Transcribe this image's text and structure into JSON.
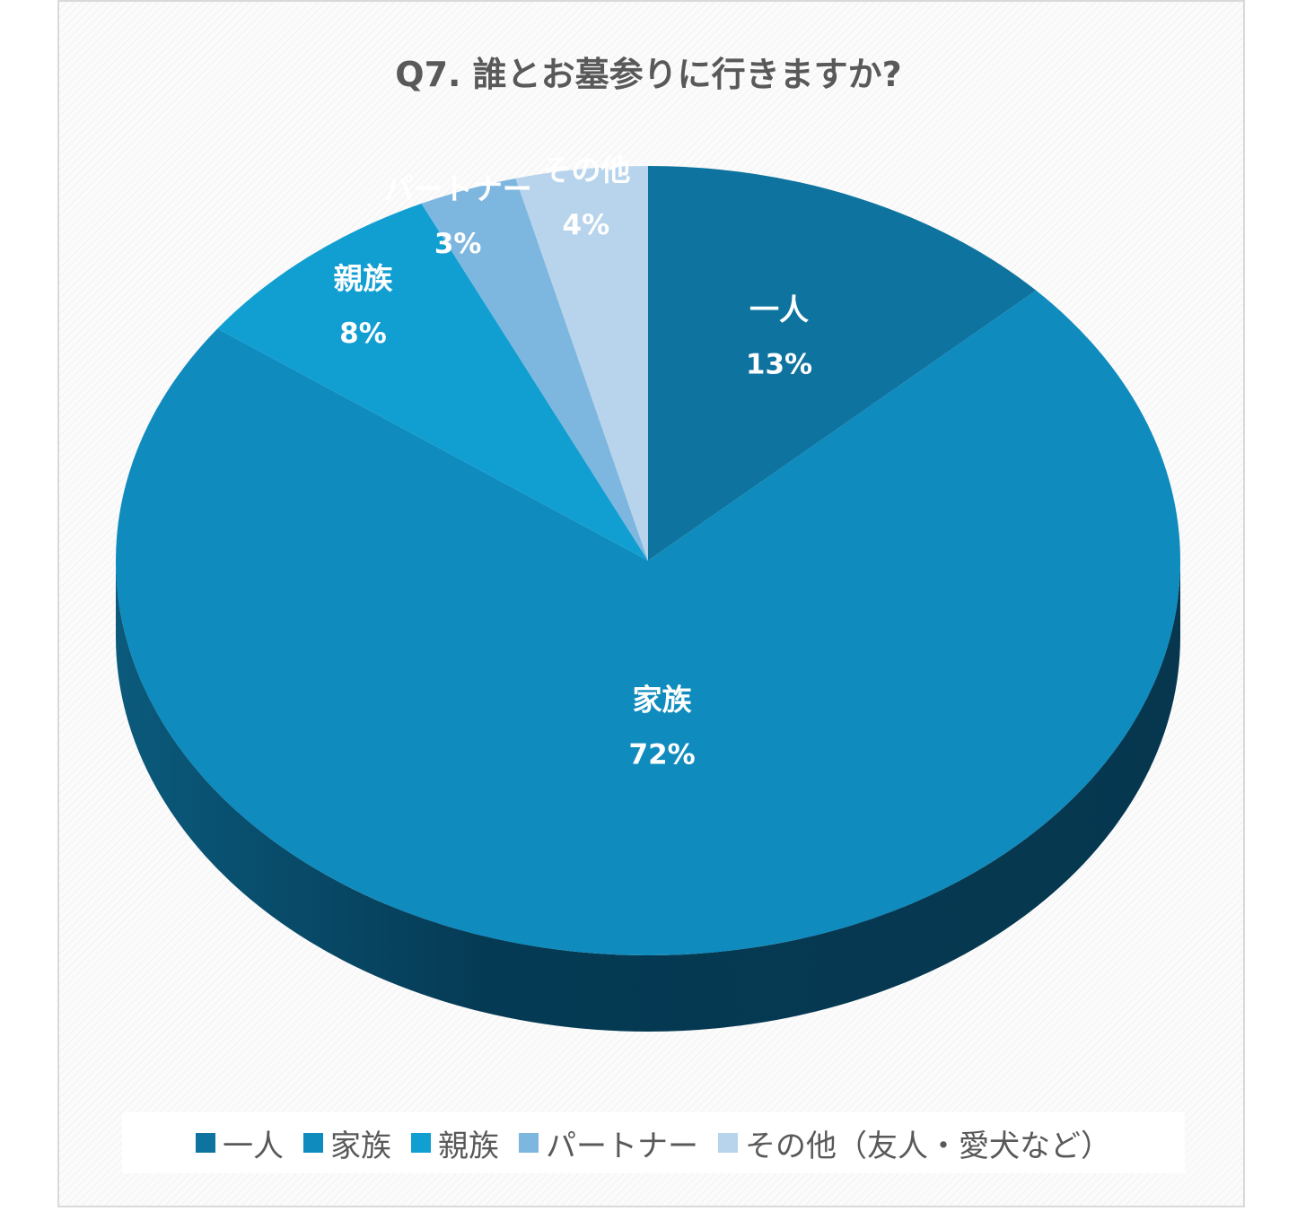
{
  "chart_data": {
    "type": "pie",
    "title": "Q7. 誰とお墓参りに行きますか?",
    "categories": [
      "一人",
      "家族",
      "親族",
      "パートナー",
      "その他（友人・愛犬など）"
    ],
    "data_labels": [
      "一人",
      "家族",
      "親族",
      "パートナー",
      "その他"
    ],
    "values": [
      13,
      72,
      8,
      3,
      4
    ],
    "percent_labels": [
      "13%",
      "72%",
      "8%",
      "3%",
      "4%"
    ],
    "colors": [
      "#0e749f",
      "#0f8bbe",
      "#119fd2",
      "#7db7df",
      "#b8d4ec"
    ],
    "side_color": "#0a3d55",
    "legend_position": "bottom",
    "style": "3d"
  }
}
